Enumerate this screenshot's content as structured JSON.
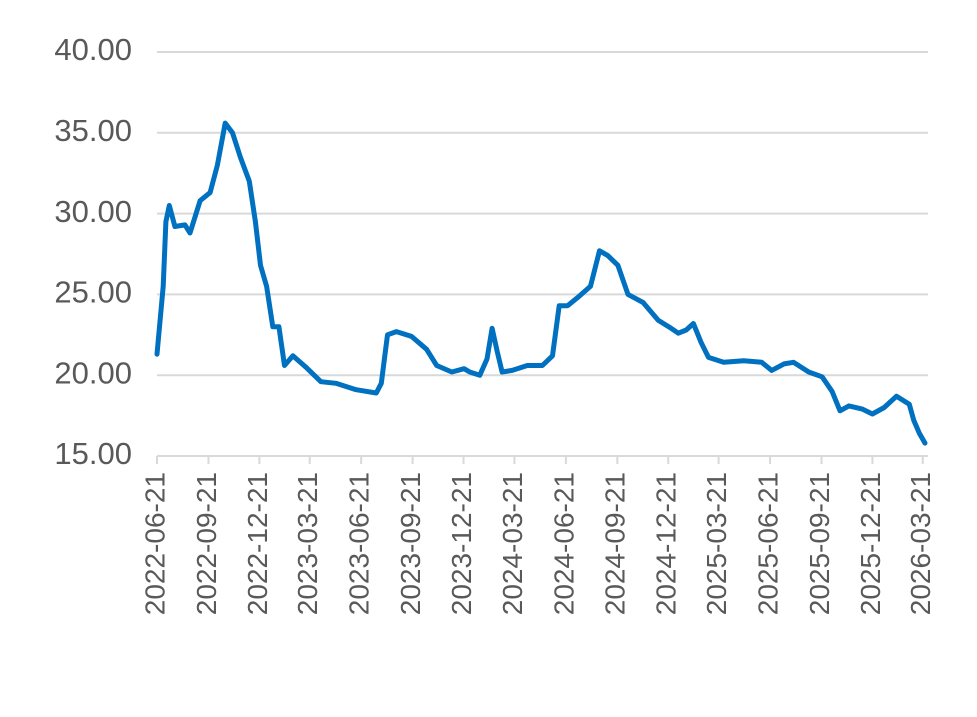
{
  "chart_data": {
    "type": "line",
    "x": [
      "2022-06-21",
      "2022-07-02",
      "2022-07-07",
      "2022-07-13",
      "2022-07-23",
      "2022-08-10",
      "2022-08-19",
      "2022-09-06",
      "2022-09-24",
      "2022-10-07",
      "2022-10-21",
      "2022-11-03",
      "2022-11-17",
      "2022-12-03",
      "2022-12-14",
      "2022-12-23",
      "2023-01-03",
      "2023-01-14",
      "2023-01-25",
      "2023-02-04",
      "2023-02-19",
      "2023-03-14",
      "2023-04-10",
      "2023-05-07",
      "2023-06-12",
      "2023-07-18",
      "2023-07-27",
      "2023-08-07",
      "2023-08-23",
      "2023-09-19",
      "2023-10-16",
      "2023-11-03",
      "2023-11-30",
      "2023-12-22",
      "2024-01-01",
      "2024-01-19",
      "2024-02-01",
      "2024-02-10",
      "2024-02-19",
      "2024-02-28",
      "2024-03-17",
      "2024-04-13",
      "2024-05-10",
      "2024-05-28",
      "2024-06-09",
      "2024-06-24",
      "2024-07-12",
      "2024-08-04",
      "2024-08-20",
      "2024-09-04",
      "2024-09-22",
      "2024-10-10",
      "2024-11-06",
      "2024-12-03",
      "2024-12-26",
      "2025-01-08",
      "2025-01-22",
      "2025-02-04",
      "2025-02-18",
      "2025-03-03",
      "2025-03-30",
      "2025-05-05",
      "2025-06-06",
      "2025-06-24",
      "2025-07-16",
      "2025-08-02",
      "2025-08-29",
      "2025-09-22",
      "2025-10-10",
      "2025-10-24",
      "2025-11-09",
      "2025-12-03",
      "2025-12-21",
      "2026-01-11",
      "2026-02-02",
      "2026-02-25",
      "2026-03-05",
      "2026-03-15",
      "2026-03-25"
    ],
    "series": [
      {
        "color": "#0070c0",
        "values": [
          21.3,
          25.5,
          29.5,
          30.5,
          29.2,
          29.3,
          28.8,
          30.8,
          31.3,
          33.0,
          35.6,
          35.0,
          33.5,
          32.0,
          29.5,
          26.8,
          25.5,
          23.0,
          23.0,
          20.6,
          21.2,
          20.5,
          19.6,
          19.5,
          19.1,
          18.9,
          19.5,
          22.5,
          22.7,
          22.4,
          21.6,
          20.6,
          20.2,
          20.4,
          20.2,
          20.0,
          21.0,
          22.9,
          21.5,
          20.2,
          20.3,
          20.6,
          20.6,
          21.2,
          24.3,
          24.3,
          24.8,
          25.5,
          27.7,
          27.4,
          26.8,
          25.0,
          24.5,
          23.4,
          22.9,
          22.6,
          22.8,
          23.2,
          22.0,
          21.1,
          20.8,
          20.9,
          20.8,
          20.3,
          20.7,
          20.8,
          20.2,
          19.9,
          19.0,
          17.8,
          18.1,
          17.9,
          17.6,
          18.0,
          18.7,
          18.2,
          17.2,
          16.4,
          15.8
        ]
      }
    ],
    "xlim": [
      "2022-06-21",
      "2026-03-25"
    ],
    "xticks": [
      "2022-06-21",
      "2022-09-21",
      "2022-12-21",
      "2023-03-21",
      "2023-06-21",
      "2023-09-21",
      "2023-12-21",
      "2024-03-21",
      "2024-06-21",
      "2024-09-21",
      "2024-12-21",
      "2025-03-21",
      "2025-06-21",
      "2025-09-21",
      "2025-12-21",
      "2026-03-21"
    ],
    "ylim": [
      15,
      40
    ],
    "yticks": [
      {
        "value": 15,
        "label": "15.00"
      },
      {
        "value": 20,
        "label": "20.00"
      },
      {
        "value": 25,
        "label": "25.00"
      },
      {
        "value": 30,
        "label": "30.00"
      },
      {
        "value": 35,
        "label": "35.00"
      },
      {
        "value": 40,
        "label": "40.00"
      }
    ],
    "grid": true
  }
}
